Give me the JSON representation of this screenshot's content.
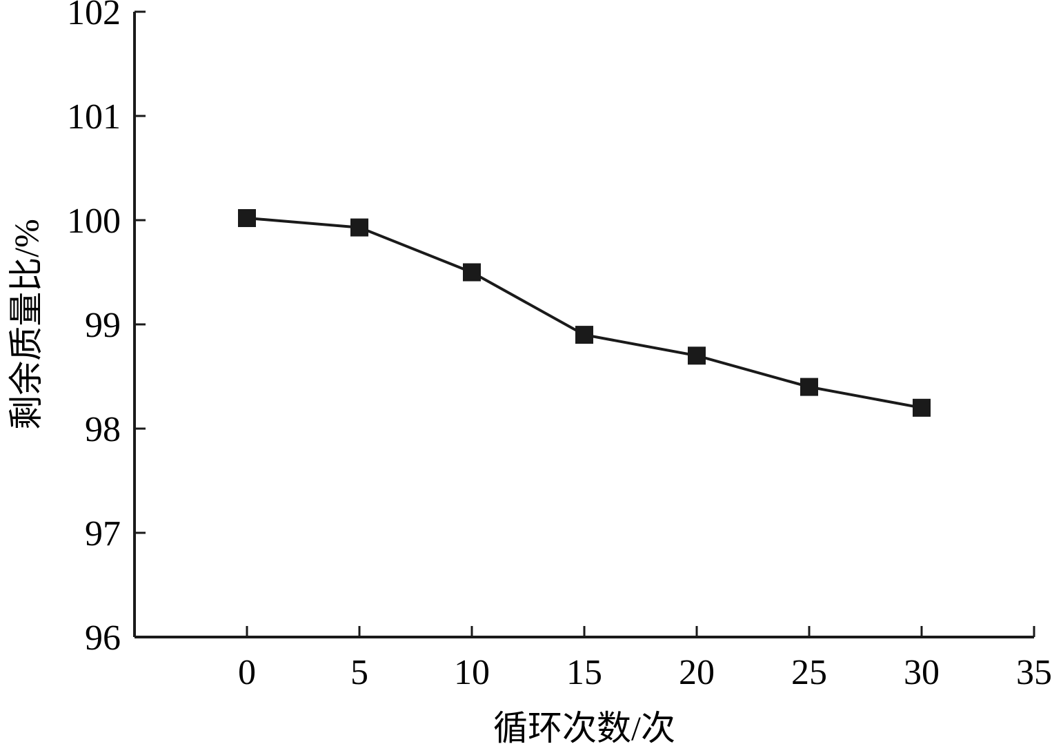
{
  "chart_data": {
    "type": "line",
    "title": "",
    "xlabel": "循环次数/次",
    "ylabel": "剩余质量比/%",
    "xlim": [
      -5,
      35
    ],
    "ylim": [
      96,
      102
    ],
    "x_ticks": [
      0,
      5,
      10,
      15,
      20,
      25,
      30,
      35
    ],
    "y_ticks": [
      96,
      97,
      98,
      99,
      100,
      101,
      102
    ],
    "grid": false,
    "legend": "none",
    "marker": "square",
    "line_color": "#1a1a1a",
    "series": [
      {
        "x": [
          0,
          5,
          10,
          15,
          20,
          25,
          30
        ],
        "y": [
          100.02,
          99.93,
          99.5,
          98.9,
          98.7,
          98.4,
          98.2
        ]
      }
    ]
  }
}
